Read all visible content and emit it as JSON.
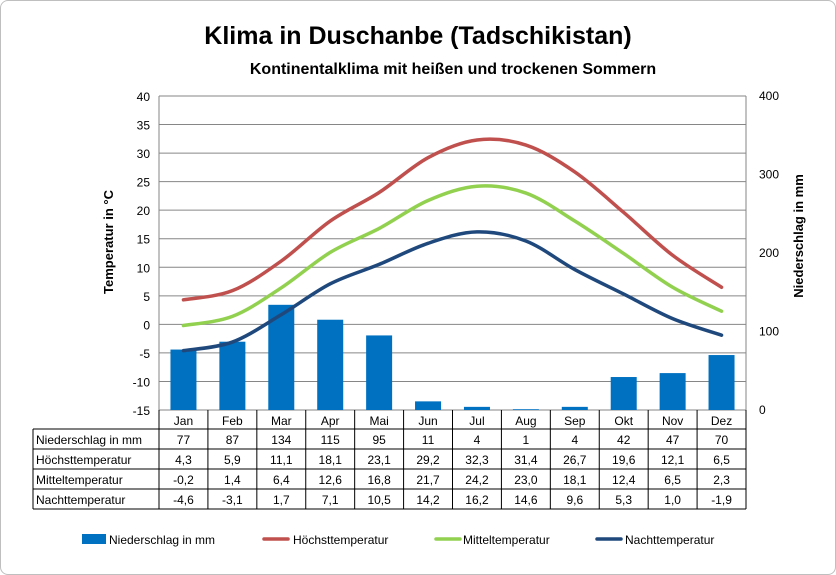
{
  "title": "Klima in Duschanbe (Tadschikistan)",
  "subtitle": "Kontinentalklima mit heißen und trockenen Sommern",
  "colors": {
    "precipitation": "#0070c0",
    "max_temp": "#c0504d",
    "mean_temp": "#92d050",
    "night_temp": "#1f497d"
  },
  "chart_data": {
    "type": "bar+line",
    "categories": [
      "Jan",
      "Feb",
      "Mar",
      "Apr",
      "Mai",
      "Jun",
      "Jul",
      "Aug",
      "Sep",
      "Okt",
      "Nov",
      "Dez"
    ],
    "left_axis": {
      "label": "Temperatur in °C",
      "ylim": [
        -15,
        40
      ],
      "ticks": [
        "40",
        "35",
        "30",
        "25",
        "20",
        "15",
        "10",
        "5",
        "0",
        "-5",
        "-10",
        "-15"
      ]
    },
    "right_axis": {
      "label": "Niederschlag in mm",
      "ylim": [
        0,
        400
      ],
      "ticks": [
        "400",
        "300",
        "200",
        "100",
        "0"
      ]
    },
    "series": [
      {
        "name": "Niederschlag in mm",
        "kind": "bar",
        "axis": "right",
        "values": [
          77,
          87,
          134,
          115,
          95,
          11,
          4,
          1,
          4,
          42,
          47,
          70
        ],
        "labels": [
          "77",
          "87",
          "134",
          "115",
          "95",
          "11",
          "4",
          "1",
          "4",
          "42",
          "47",
          "70"
        ]
      },
      {
        "name": "Höchsttemperatur",
        "kind": "line",
        "axis": "left",
        "values": [
          4.3,
          5.9,
          11.1,
          18.1,
          23.1,
          29.2,
          32.3,
          31.4,
          26.7,
          19.6,
          12.1,
          6.5
        ],
        "labels": [
          "4,3",
          "5,9",
          "11,1",
          "18,1",
          "23,1",
          "29,2",
          "32,3",
          "31,4",
          "26,7",
          "19,6",
          "12,1",
          "6,5"
        ]
      },
      {
        "name": "Mitteltemperatur",
        "kind": "line",
        "axis": "left",
        "values": [
          -0.2,
          1.4,
          6.4,
          12.6,
          16.8,
          21.7,
          24.2,
          23.0,
          18.1,
          12.4,
          6.5,
          2.3
        ],
        "labels": [
          "-0,2",
          "1,4",
          "6,4",
          "12,6",
          "16,8",
          "21,7",
          "24,2",
          "23,0",
          "18,1",
          "12,4",
          "6,5",
          "2,3"
        ]
      },
      {
        "name": "Nachttemperatur",
        "kind": "line",
        "axis": "left",
        "values": [
          -4.6,
          -3.1,
          1.7,
          7.1,
          10.5,
          14.2,
          16.2,
          14.6,
          9.6,
          5.3,
          1.0,
          -1.9
        ],
        "labels": [
          "-4,6",
          "-3,1",
          "1,7",
          "7,1",
          "10,5",
          "14,2",
          "16,2",
          "14,6",
          "9,6",
          "5,3",
          "1,0",
          "-1,9"
        ]
      }
    ]
  }
}
